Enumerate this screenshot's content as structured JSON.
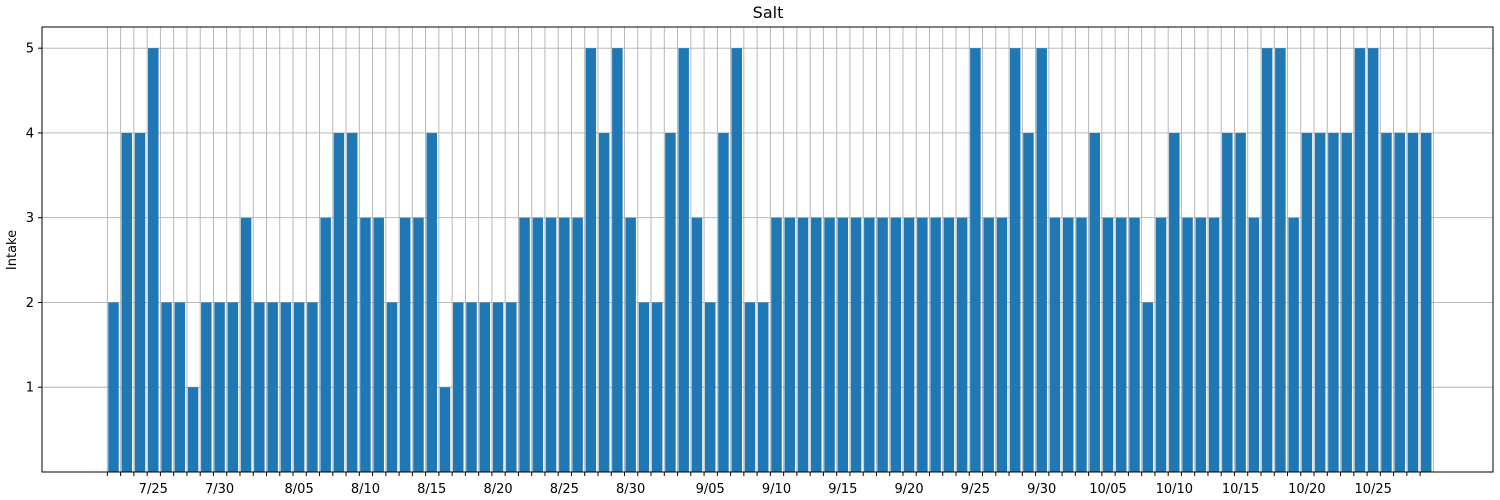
{
  "chart_data": {
    "type": "bar",
    "title": "Salt",
    "xlabel": "",
    "ylabel": "Intake",
    "x_start": "2024-07-22",
    "dates": [
      "7/22",
      "7/23",
      "7/24",
      "7/25",
      "7/26",
      "7/27",
      "7/28",
      "7/29",
      "7/30",
      "7/31",
      "8/01",
      "8/02",
      "8/03",
      "8/04",
      "8/05",
      "8/06",
      "8/07",
      "8/08",
      "8/09",
      "8/10",
      "8/11",
      "8/12",
      "8/13",
      "8/14",
      "8/15",
      "8/16",
      "8/17",
      "8/18",
      "8/19",
      "8/20",
      "8/21",
      "8/22",
      "8/23",
      "8/24",
      "8/25",
      "8/26",
      "8/27",
      "8/28",
      "8/29",
      "8/30",
      "8/31",
      "9/01",
      "9/02",
      "9/03",
      "9/04",
      "9/05",
      "9/06",
      "9/07",
      "9/08",
      "9/09",
      "9/10",
      "9/11",
      "9/12",
      "9/13",
      "9/14",
      "9/15",
      "9/16",
      "9/17",
      "9/18",
      "9/19",
      "9/20",
      "9/21",
      "9/22",
      "9/23",
      "9/24",
      "9/25",
      "9/26",
      "9/27",
      "9/28",
      "9/29",
      "9/30",
      "10/01",
      "10/02",
      "10/03",
      "10/04",
      "10/05",
      "10/06",
      "10/07",
      "10/08",
      "10/09",
      "10/10",
      "10/11",
      "10/12",
      "10/13",
      "10/14",
      "10/15",
      "10/16",
      "10/17",
      "10/18",
      "10/19",
      "10/20",
      "10/21",
      "10/22",
      "10/23",
      "10/24",
      "10/25",
      "10/26",
      "10/27",
      "10/28",
      "10/29"
    ],
    "values": [
      2,
      4,
      4,
      5,
      2,
      2,
      1,
      2,
      2,
      2,
      3,
      2,
      2,
      2,
      2,
      2,
      3,
      4,
      4,
      3,
      3,
      2,
      3,
      3,
      4,
      1,
      2,
      2,
      2,
      2,
      2,
      3,
      3,
      3,
      3,
      3,
      5,
      4,
      5,
      3,
      2,
      2,
      4,
      5,
      3,
      2,
      4,
      5,
      2,
      2,
      3,
      3,
      3,
      3,
      3,
      3,
      3,
      3,
      3,
      3,
      3,
      3,
      3,
      3,
      3,
      5,
      3,
      3,
      5,
      4,
      5,
      3,
      3,
      3,
      4,
      3,
      3,
      3,
      2,
      3,
      4,
      3,
      3,
      3,
      4,
      4,
      3,
      5,
      5,
      3,
      4,
      4,
      4,
      4,
      5,
      5,
      4,
      4,
      4,
      4
    ],
    "x_tick_labels": [
      "7/25",
      "7/30",
      "8/05",
      "8/10",
      "8/15",
      "8/20",
      "8/25",
      "8/30",
      "9/05",
      "9/10",
      "9/15",
      "9/20",
      "9/25",
      "9/30",
      "10/05",
      "10/10",
      "10/15",
      "10/20",
      "10/25"
    ],
    "y_ticks": [
      1,
      2,
      3,
      4,
      5
    ],
    "ylim": [
      0,
      5.25
    ],
    "grid": true,
    "bar_color": "#1f77b4"
  }
}
